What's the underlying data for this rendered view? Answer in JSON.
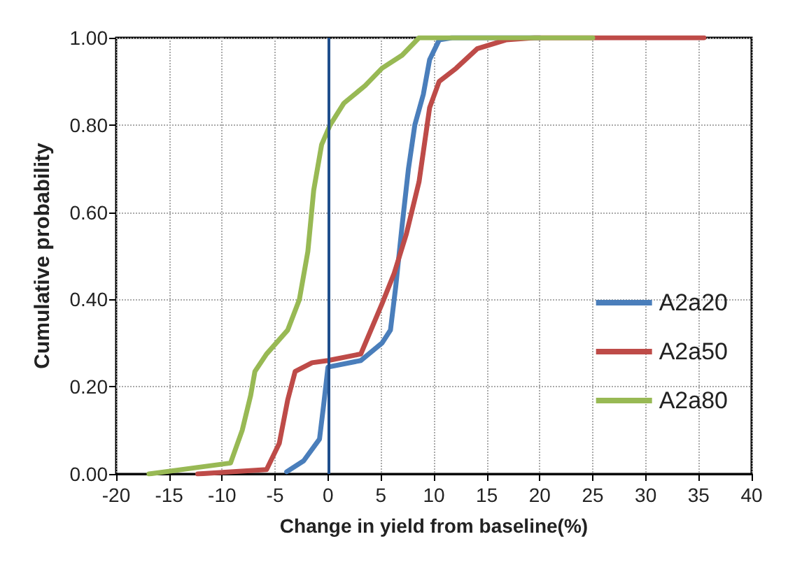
{
  "chart_data": {
    "type": "line",
    "xlabel": "Change in yield from baseline(%)",
    "ylabel": "Cumulative probability",
    "xlim": [
      -20,
      40
    ],
    "xticks": [
      -20,
      -15,
      -10,
      -5,
      0,
      5,
      10,
      15,
      20,
      25,
      30,
      35,
      40
    ],
    "ylim": [
      0,
      1
    ],
    "yticks": [
      {
        "value": 0,
        "label": "0.00"
      },
      {
        "value": 0.2,
        "label": "0.20"
      },
      {
        "value": 0.4,
        "label": "0.40"
      },
      {
        "value": 0.6,
        "label": "0.60"
      },
      {
        "value": 0.8,
        "label": "0.80"
      },
      {
        "value": 1,
        "label": "1.00"
      }
    ],
    "grid": true,
    "legend": "right",
    "ref_lines": [
      {
        "axis": "x",
        "value": 0,
        "color": "#1f4e8c"
      }
    ],
    "marker": "none",
    "line_style": "solid",
    "series": [
      {
        "name": "A2a20",
        "color": "#4a7ebb",
        "x": [
          -3.9,
          -2.3,
          -0.8,
          -0.4,
          0,
          3.1,
          5.1,
          5.9,
          6.4,
          7.0,
          7.6,
          8.2,
          9.0,
          9.6,
          10.5,
          11.7,
          20
        ],
        "values": [
          0.005,
          0.03,
          0.08,
          0.16,
          0.245,
          0.26,
          0.3,
          0.33,
          0.43,
          0.57,
          0.7,
          0.8,
          0.87,
          0.95,
          0.995,
          1,
          1
        ]
      },
      {
        "name": "A2a50",
        "color": "#be4b48",
        "x": [
          -12.3,
          -5.8,
          -4.6,
          -3.8,
          -3.1,
          -1.5,
          0,
          3.1,
          5.1,
          6.25,
          7.4,
          8.6,
          9.6,
          10.5,
          12.1,
          14.1,
          16.8,
          19.5,
          35.5
        ],
        "values": [
          0,
          0.01,
          0.07,
          0.17,
          0.235,
          0.255,
          0.26,
          0.275,
          0.39,
          0.46,
          0.55,
          0.67,
          0.84,
          0.9,
          0.93,
          0.975,
          0.995,
          1,
          1
        ]
      },
      {
        "name": "A2a80",
        "color": "#98b954",
        "x": [
          -16.9,
          -12.3,
          -9.2,
          -8.1,
          -7.3,
          -6.9,
          -5.8,
          -3.8,
          -2.7,
          -1.9,
          -1.35,
          -0.6,
          0.2,
          1.5,
          3.5,
          5.1,
          7.0,
          8.6,
          10.4,
          25
        ],
        "values": [
          0,
          0.015,
          0.025,
          0.1,
          0.18,
          0.235,
          0.275,
          0.33,
          0.4,
          0.51,
          0.65,
          0.755,
          0.8,
          0.85,
          0.89,
          0.93,
          0.96,
          1,
          1,
          1
        ]
      }
    ]
  }
}
